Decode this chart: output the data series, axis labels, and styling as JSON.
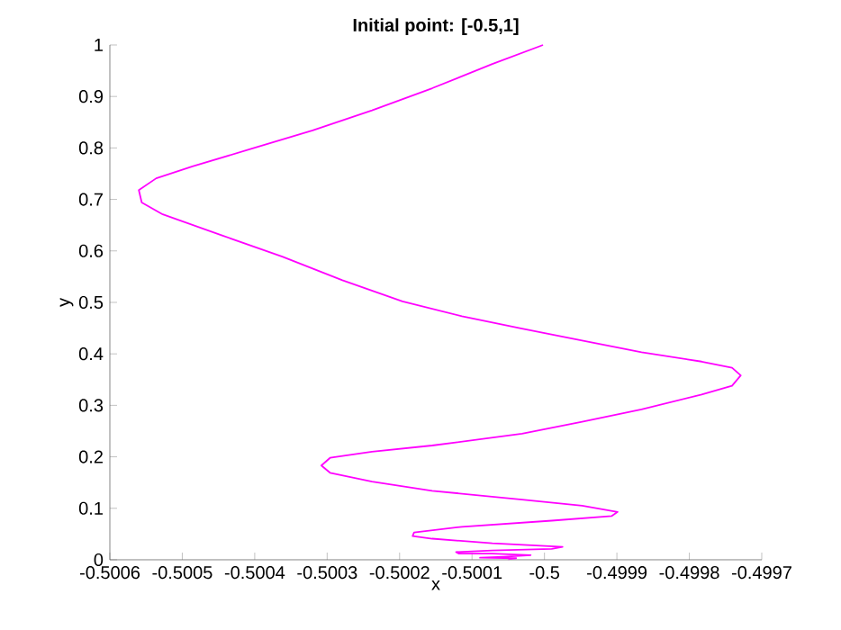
{
  "chart_data": {
    "type": "line",
    "title": "Initial point: [-0.5,1]",
    "xlabel": "x",
    "ylabel": "y",
    "xlim": [
      -0.5006,
      -0.4997
    ],
    "ylim": [
      0,
      1
    ],
    "xticks": [
      -0.5006,
      -0.5005,
      -0.5004,
      -0.5003,
      -0.5002,
      -0.5001,
      -0.5,
      -0.4999,
      -0.4998,
      -0.4997
    ],
    "yticks": [
      0,
      0.1,
      0.2,
      0.3,
      0.4,
      0.5,
      0.6,
      0.7,
      0.8,
      0.9,
      1
    ],
    "grid": false,
    "series": [
      {
        "color": "#ff00ff",
        "x": [
          -0.500002,
          -0.500072,
          -0.500155,
          -0.500238,
          -0.50032,
          -0.500403,
          -0.500486,
          -0.500536,
          -0.50056,
          -0.500556,
          -0.500527,
          -0.500445,
          -0.500362,
          -0.500279,
          -0.500196,
          -0.500114,
          -0.500031,
          -0.499948,
          -0.499866,
          -0.499783,
          -0.499741,
          -0.499729,
          -0.499741,
          -0.499783,
          -0.499866,
          -0.499948,
          -0.500031,
          -0.500155,
          -0.500238,
          -0.500296,
          -0.500308,
          -0.500296,
          -0.500238,
          -0.500155,
          -0.500031,
          -0.499948,
          -0.499899,
          -0.499907,
          -0.49999,
          -0.500114,
          -0.50018,
          -0.500182,
          -0.500155,
          -0.500072,
          -0.499975,
          -0.49999,
          -0.500072,
          -0.500122,
          -0.500118,
          -0.500072,
          -0.500019,
          -0.500056,
          -0.500089,
          -0.500039,
          -0.50005
        ],
        "values": [
          1,
          0.963,
          0.916,
          0.873,
          0.834,
          0.799,
          0.764,
          0.741,
          0.718,
          0.694,
          0.671,
          0.63,
          0.589,
          0.543,
          0.502,
          0.473,
          0.449,
          0.426,
          0.403,
          0.385,
          0.373,
          0.358,
          0.338,
          0.321,
          0.292,
          0.268,
          0.245,
          0.222,
          0.21,
          0.198,
          0.183,
          0.169,
          0.152,
          0.134,
          0.117,
          0.105,
          0.093,
          0.085,
          0.076,
          0.064,
          0.053,
          0.046,
          0.041,
          0.032,
          0.025,
          0.021,
          0.018,
          0.015,
          0.012,
          0.012,
          0.009,
          0.006,
          0.004,
          0.003,
          0.001
        ]
      }
    ]
  }
}
